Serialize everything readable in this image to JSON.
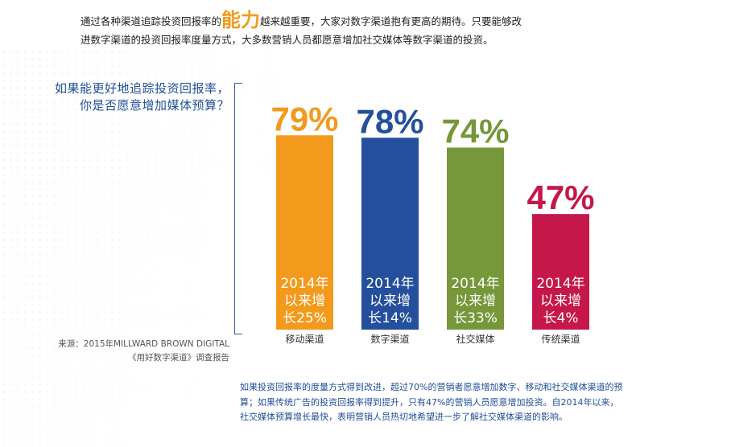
{
  "intro": {
    "text_before": "通过各种渠道追踪投资回报率的",
    "highlight": "能力",
    "text_after": "越来越重要，大家对数字渠道抱有更高的期待。只要能够改进数字渠道的投资回报率度量方式，大多数营销人员都愿意增加社交媒体等数字渠道的投资。"
  },
  "question": {
    "line1": "如果能更好地追踪投资回报率，",
    "line2": "你是否愿意增加媒体预算？"
  },
  "source": {
    "line1": "来源：2015年MILLWARD BROWN DIGITAL",
    "line2": "《用好数字渠道》调查报告"
  },
  "conclusion": "如果投资回报率的度量方式得到改进，超过70%的营销者愿意增加数字、移动和社交媒体渠道的预算；如果传统广告的投资回报率得到提升，只有47%的营销人员愿意增加投资。自2014年以来，社交媒体预算增长最快，表明营销人员热切地希望进一步了解社交媒体渠道的影响。",
  "chart_data": {
    "type": "bar",
    "title": "如果能更好地追踪投资回报率，你是否愿意增加媒体预算？",
    "categories": [
      "移动渠道",
      "数字渠道",
      "社交媒体",
      "传统渠道"
    ],
    "values": [
      79,
      78,
      74,
      47
    ],
    "value_labels": [
      "79%",
      "78%",
      "74%",
      "47%"
    ],
    "growth_labels": [
      [
        "2014年",
        "以来增",
        "长25%"
      ],
      [
        "2014年",
        "以来增",
        "长14%"
      ],
      [
        "2014年",
        "以来增",
        "长33%"
      ],
      [
        "2014年",
        "以来增",
        "长4%"
      ]
    ],
    "colors": [
      "#f39a1d",
      "#244f9d",
      "#76973a",
      "#c5174a"
    ],
    "ylim": [
      0,
      100
    ],
    "xlabel": "",
    "ylabel": ""
  }
}
